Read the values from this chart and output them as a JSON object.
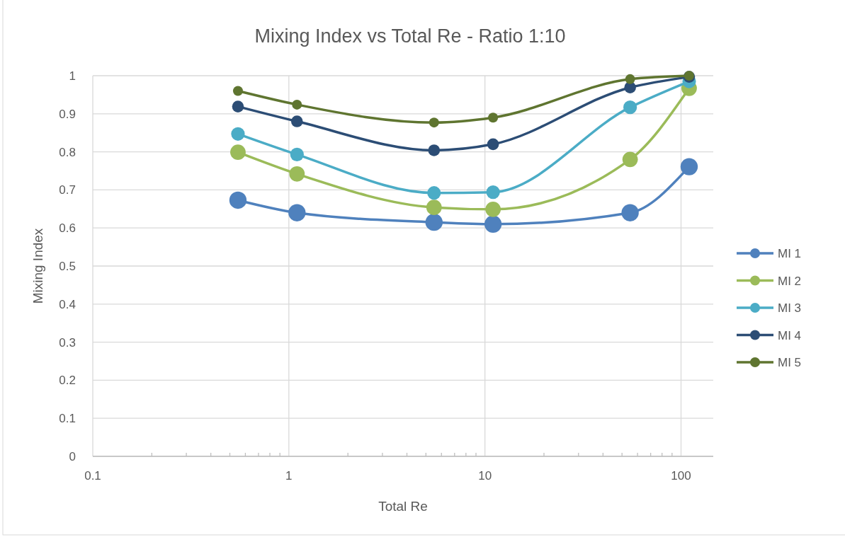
{
  "chart_data": {
    "type": "line",
    "title": "Mixing Index vs Total Re - Ratio 1:10",
    "xlabel": "Total Re",
    "ylabel": "Mixing Index",
    "x": [
      0.55,
      1.1,
      5.5,
      11,
      55,
      110
    ],
    "series": [
      {
        "name": "MI 1",
        "color": "#4f81bd",
        "values": [
          0.673,
          0.64,
          0.615,
          0.61,
          0.64,
          0.761
        ]
      },
      {
        "name": "MI 2",
        "color": "#9bbb59",
        "values": [
          0.799,
          0.742,
          0.654,
          0.649,
          0.78,
          0.967
        ]
      },
      {
        "name": "MI 3",
        "color": "#4bacc6",
        "values": [
          0.847,
          0.793,
          0.692,
          0.694,
          0.917,
          0.985
        ]
      },
      {
        "name": "MI 4",
        "color": "#2c4d75",
        "values": [
          0.919,
          0.88,
          0.804,
          0.82,
          0.969,
          0.997
        ]
      },
      {
        "name": "MI 5",
        "color": "#5f7530",
        "values": [
          0.96,
          0.924,
          0.877,
          0.89,
          0.991,
          1.0
        ]
      }
    ],
    "log": "x",
    "xlim": [
      0.1,
      146
    ],
    "xticks": [
      0.1,
      {
        "value": 0.2,
        "label": null
      },
      {
        "value": 0.3,
        "label": null
      },
      {
        "value": 0.4,
        "label": null
      },
      {
        "value": 0.5,
        "label": null
      },
      {
        "value": 0.6,
        "label": null
      },
      {
        "value": 0.7,
        "label": null
      },
      {
        "value": 0.8,
        "label": null
      },
      {
        "value": 0.9,
        "label": null
      },
      1,
      {
        "value": 2,
        "label": null
      },
      {
        "value": 3,
        "label": null
      },
      {
        "value": 4,
        "label": null
      },
      {
        "value": 5,
        "label": null
      },
      {
        "value": 6,
        "label": null
      },
      {
        "value": 7,
        "label": null
      },
      {
        "value": 8,
        "label": null
      },
      {
        "value": 9,
        "label": null
      },
      10,
      {
        "value": 20,
        "label": null
      },
      {
        "value": 30,
        "label": null
      },
      {
        "value": 40,
        "label": null
      },
      {
        "value": 50,
        "label": null
      },
      {
        "value": 60,
        "label": null
      },
      {
        "value": 70,
        "label": null
      },
      {
        "value": 80,
        "label": null
      },
      {
        "value": 90,
        "label": null
      },
      100
    ],
    "ylim": [
      0,
      1
    ],
    "yticks": [
      0,
      0.1,
      0.2,
      0.3,
      0.4,
      0.5,
      0.6,
      0.7,
      0.8,
      0.9,
      1
    ],
    "grid": true,
    "legend": "right",
    "marker": "circle",
    "line_style": "solid"
  }
}
